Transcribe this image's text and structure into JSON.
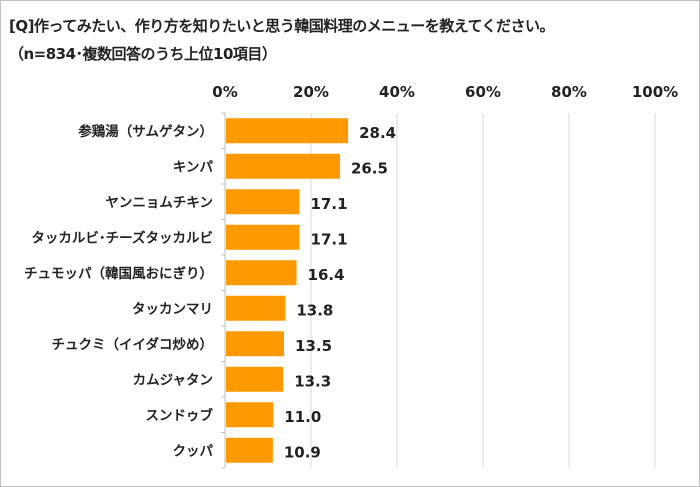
{
  "chart_data": {
    "type": "bar",
    "orientation": "horizontal",
    "title": "[Q]作ってみたい、作り方を知りたいと思う韓国料理のメニューを教えてください。",
    "subtitle": "（n=834･複数回答のうち上位10項目）",
    "categories": [
      "参鶏湯（サムゲタン）",
      "キンパ",
      "ヤンニョムチキン",
      "タッカルビ･チーズタッカルビ",
      "チュモッパ（韓国風おにぎり）",
      "タッカンマリ",
      "チュクミ（イイダコ炒め）",
      "カムジャタン",
      "スンドゥブ",
      "クッパ"
    ],
    "values": [
      28.4,
      26.5,
      17.1,
      17.1,
      16.4,
      13.8,
      13.5,
      13.3,
      11.0,
      10.9
    ],
    "data_labels": [
      "28.4",
      "26.5",
      "17.1",
      "17.1",
      "16.4",
      "13.8",
      "13.5",
      "13.3",
      "11.0",
      "10.9"
    ],
    "x_ticks": [
      "0%",
      "20%",
      "40%",
      "60%",
      "80%",
      "100%"
    ],
    "xlim": [
      0,
      100
    ],
    "axis_position": "top",
    "grid": true,
    "bar_color": "#FF9900",
    "xlabel": "",
    "ylabel": ""
  }
}
